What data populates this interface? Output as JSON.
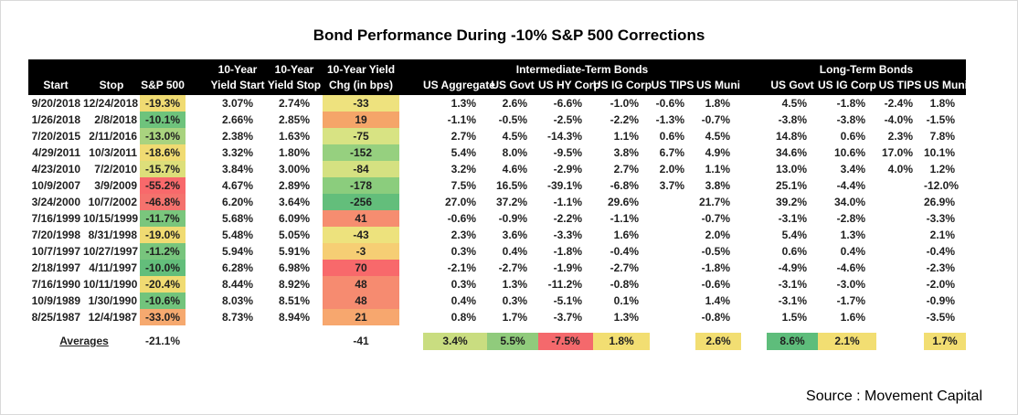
{
  "chart_data": {
    "type": "table",
    "title": "Bond Performance During -10% S&P 500 Corrections",
    "source": "Source : Movement Capital",
    "top_row": {
      "yield_start": "10-Year",
      "yield_stop": "10-Year",
      "yield_chg": "10-Year Yield",
      "intermediate_group": "Intermediate-Term Bonds",
      "long_group": "Long-Term Bonds"
    },
    "columns": [
      "Start",
      "Stop",
      "S&P 500",
      "Yield Start",
      "Yield Stop",
      "Chg (in bps)",
      "US Aggregate",
      "US Govt",
      "US HY Corp",
      "US IG Corp",
      "US TIPS",
      "US Muni",
      "US Govt",
      "US IG Corp",
      "US TIPS",
      "US Muni"
    ],
    "colors": {
      "header_bg": "#000000",
      "header_text": "#ffffff"
    },
    "rows": [
      {
        "start": "9/20/2018",
        "stop": "12/24/2018",
        "sp": "-19.3%",
        "sp_bg": "#F0DB72",
        "ystart": "3.07%",
        "ystop": "2.74%",
        "chg": "-33",
        "chg_bg": "#EEE27E",
        "cells": [
          "1.3%",
          "2.6%",
          "-6.6%",
          "-1.0%",
          "-0.6%",
          "1.8%",
          "4.5%",
          "-1.8%",
          "-2.4%",
          "1.8%"
        ]
      },
      {
        "start": "1/26/2018",
        "stop": "2/8/2018",
        "sp": "-10.1%",
        "sp_bg": "#6EC37C",
        "ystart": "2.66%",
        "ystop": "2.85%",
        "chg": "19",
        "chg_bg": "#F5A569",
        "cells": [
          "-1.1%",
          "-0.5%",
          "-2.5%",
          "-2.2%",
          "-1.3%",
          "-0.7%",
          "-3.8%",
          "-3.8%",
          "-4.0%",
          "-1.5%"
        ]
      },
      {
        "start": "7/20/2015",
        "stop": "2/11/2016",
        "sp": "-13.0%",
        "sp_bg": "#A9D37F",
        "ystart": "2.38%",
        "ystop": "1.63%",
        "chg": "-75",
        "chg_bg": "#D8E383",
        "cells": [
          "2.7%",
          "4.5%",
          "-14.3%",
          "1.1%",
          "0.6%",
          "4.5%",
          "14.8%",
          "0.6%",
          "2.3%",
          "7.8%"
        ]
      },
      {
        "start": "4/29/2011",
        "stop": "10/3/2011",
        "sp": "-18.6%",
        "sp_bg": "#F0DB72",
        "ystart": "3.32%",
        "ystop": "1.80%",
        "chg": "-152",
        "chg_bg": "#96D07F",
        "cells": [
          "5.4%",
          "8.0%",
          "-9.5%",
          "3.8%",
          "6.7%",
          "4.9%",
          "34.6%",
          "10.6%",
          "17.0%",
          "10.1%"
        ]
      },
      {
        "start": "4/23/2010",
        "stop": "7/2/2010",
        "sp": "-15.7%",
        "sp_bg": "#DDDF7A",
        "ystart": "3.84%",
        "ystop": "3.00%",
        "chg": "-84",
        "chg_bg": "#D5E181",
        "cells": [
          "3.2%",
          "4.6%",
          "-2.9%",
          "2.7%",
          "2.0%",
          "1.1%",
          "13.0%",
          "3.4%",
          "4.0%",
          "1.2%"
        ]
      },
      {
        "start": "10/9/2007",
        "stop": "3/9/2009",
        "sp": "-55.2%",
        "sp_bg": "#F8696B",
        "ystart": "4.67%",
        "ystop": "2.89%",
        "chg": "-178",
        "chg_bg": "#8BCD7D",
        "cells": [
          "7.5%",
          "16.5%",
          "-39.1%",
          "-6.8%",
          "3.7%",
          "3.8%",
          "25.1%",
          "-4.4%",
          "",
          "-12.0%"
        ]
      },
      {
        "start": "3/24/2000",
        "stop": "10/7/2002",
        "sp": "-46.8%",
        "sp_bg": "#F4726D",
        "ystart": "6.20%",
        "ystop": "3.64%",
        "chg": "-256",
        "chg_bg": "#63BE7B",
        "cells": [
          "27.0%",
          "37.2%",
          "-1.1%",
          "29.6%",
          "",
          "21.7%",
          "39.2%",
          "34.0%",
          "",
          "26.9%"
        ]
      },
      {
        "start": "7/16/1999",
        "stop": "10/15/1999",
        "sp": "-11.7%",
        "sp_bg": "#7AC67D",
        "ystart": "5.68%",
        "ystop": "6.09%",
        "chg": "41",
        "chg_bg": "#F68D70",
        "cells": [
          "-0.6%",
          "-0.9%",
          "-2.2%",
          "-1.1%",
          "",
          "-0.7%",
          "-3.1%",
          "-2.8%",
          "",
          "-3.3%"
        ]
      },
      {
        "start": "7/20/1998",
        "stop": "8/31/1998",
        "sp": "-19.0%",
        "sp_bg": "#F0DB72",
        "ystart": "5.48%",
        "ystop": "5.05%",
        "chg": "-43",
        "chg_bg": "#EDE27D",
        "cells": [
          "2.3%",
          "3.6%",
          "-3.3%",
          "1.6%",
          "",
          "2.0%",
          "5.4%",
          "1.3%",
          "",
          "2.1%"
        ]
      },
      {
        "start": "10/7/1997",
        "stop": "10/27/1997",
        "sp": "-11.2%",
        "sp_bg": "#78C57D",
        "ystart": "5.94%",
        "ystop": "5.91%",
        "chg": "-3",
        "chg_bg": "#F6CE74",
        "cells": [
          "0.3%",
          "0.4%",
          "-1.8%",
          "-0.4%",
          "",
          "-0.5%",
          "0.6%",
          "0.4%",
          "",
          "-0.4%"
        ]
      },
      {
        "start": "2/18/1997",
        "stop": "4/11/1997",
        "sp": "-10.0%",
        "sp_bg": "#63BE7B",
        "ystart": "6.28%",
        "ystop": "6.98%",
        "chg": "70",
        "chg_bg": "#F8696B",
        "cells": [
          "-2.1%",
          "-2.7%",
          "-1.9%",
          "-2.7%",
          "",
          "-1.8%",
          "-4.9%",
          "-4.6%",
          "",
          "-2.3%"
        ]
      },
      {
        "start": "7/16/1990",
        "stop": "10/11/1990",
        "sp": "-20.4%",
        "sp_bg": "#F0DB72",
        "ystart": "8.44%",
        "ystop": "8.92%",
        "chg": "48",
        "chg_bg": "#F68B70",
        "cells": [
          "0.3%",
          "1.3%",
          "-11.2%",
          "-0.8%",
          "",
          "-0.6%",
          "-3.1%",
          "-3.0%",
          "",
          "-2.0%"
        ]
      },
      {
        "start": "10/9/1989",
        "stop": "1/30/1990",
        "sp": "-10.6%",
        "sp_bg": "#72C47C",
        "ystart": "8.03%",
        "ystop": "8.51%",
        "chg": "48",
        "chg_bg": "#F68B70",
        "cells": [
          "0.4%",
          "0.3%",
          "-5.1%",
          "0.1%",
          "",
          "1.4%",
          "-3.1%",
          "-1.7%",
          "",
          "-0.9%"
        ]
      },
      {
        "start": "8/25/1987",
        "stop": "12/4/1987",
        "sp": "-33.0%",
        "sp_bg": "#F6A96F",
        "ystart": "8.73%",
        "ystop": "8.94%",
        "chg": "21",
        "chg_bg": "#F7A76E",
        "cells": [
          "0.8%",
          "1.7%",
          "-3.7%",
          "1.3%",
          "",
          "-0.8%",
          "1.5%",
          "1.6%",
          "",
          "-3.5%"
        ]
      }
    ],
    "averages": {
      "label": "Averages",
      "sp": "-21.1%",
      "chg": "-41",
      "cells": [
        {
          "v": "3.4%",
          "bg": "#C9DD80"
        },
        {
          "v": "5.5%",
          "bg": "#90CB7C"
        },
        {
          "v": "-7.5%",
          "bg": "#F4696C"
        },
        {
          "v": "1.8%",
          "bg": "#F2DE72"
        },
        {
          "v": "",
          "bg": ""
        },
        {
          "v": "2.6%",
          "bg": "#F2DE72"
        },
        {
          "v": "8.6%",
          "bg": "#5EBD7B"
        },
        {
          "v": "2.1%",
          "bg": "#F2DE72"
        },
        {
          "v": "",
          "bg": ""
        },
        {
          "v": "1.7%",
          "bg": "#F2DE72"
        }
      ]
    }
  }
}
